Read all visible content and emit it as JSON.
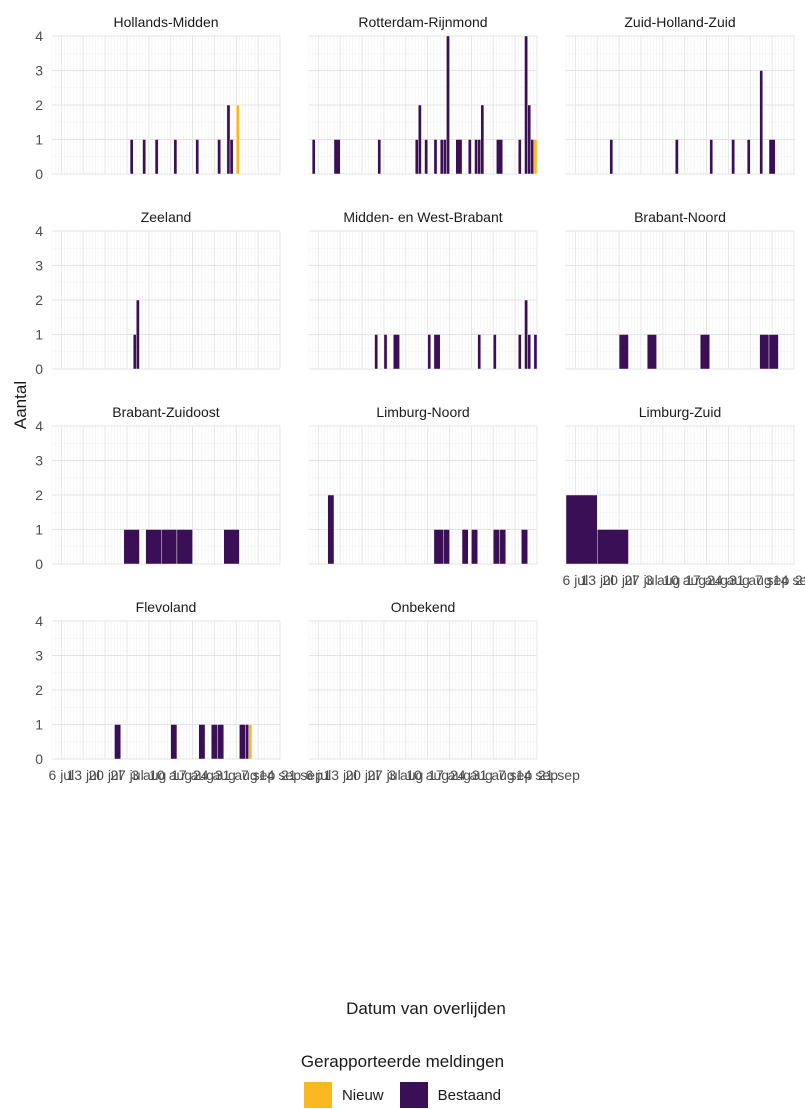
{
  "chart_data": {
    "type": "bar",
    "subtype": "faceted-stacked-histogram",
    "xlabel": "Datum van overlijden",
    "ylabel": "Aantal",
    "ylim": [
      0,
      4
    ],
    "y_ticks": [
      "0",
      "1",
      "2",
      "3",
      "4"
    ],
    "x_range": [
      "2020-07-03",
      "2020-09-13"
    ],
    "x_tick_labels_first": [
      "6 jul",
      "13 jul",
      "20 jul",
      "27 jul",
      "3 aug",
      "10 aug",
      "17 aug",
      "24 aug",
      "31 aug",
      "7 sep",
      "14 sep",
      "21 sep"
    ],
    "x_tick_labels_second": [
      "6 jul",
      "13 jul",
      "20 jul",
      "27 jul",
      "3 aug",
      "10 aug",
      "17 aug",
      "24 aug",
      "31 aug",
      "7 sep",
      "14 sep",
      "21 sep"
    ],
    "x_tick_labels_limburg_zuid": [
      "6 jul",
      "13 jul",
      "20 jul",
      "27 jul",
      "3 aug",
      "10 aug",
      "17 aug",
      "24 aug",
      "31 aug",
      "7 sep",
      "14 sep",
      "21 sep"
    ],
    "legend": {
      "title": "Gerapporteerde meldingen",
      "entries": [
        {
          "name": "Nieuw",
          "color": "#F9B822"
        },
        {
          "name": "Bestaand",
          "color": "#3B0F56"
        }
      ]
    },
    "facets": [
      {
        "name": "Hollands-Midden",
        "bars": [
          {
            "start": "2020-07-28",
            "days": 1,
            "bestaand": 1,
            "nieuw": 0
          },
          {
            "start": "2020-08-01",
            "days": 1,
            "bestaand": 1,
            "nieuw": 0
          },
          {
            "start": "2020-08-05",
            "days": 1,
            "bestaand": 1,
            "nieuw": 0
          },
          {
            "start": "2020-08-11",
            "days": 1,
            "bestaand": 1,
            "nieuw": 0
          },
          {
            "start": "2020-08-18",
            "days": 1,
            "bestaand": 1,
            "nieuw": 0
          },
          {
            "start": "2020-08-25",
            "days": 1,
            "bestaand": 1,
            "nieuw": 0
          },
          {
            "start": "2020-08-28",
            "days": 1,
            "bestaand": 2,
            "nieuw": 0
          },
          {
            "start": "2020-08-29",
            "days": 1,
            "bestaand": 1,
            "nieuw": 0
          },
          {
            "start": "2020-08-31",
            "days": 1,
            "bestaand": 0,
            "nieuw": 2
          }
        ]
      },
      {
        "name": "Rotterdam-Rijnmond",
        "bars": [
          {
            "start": "2020-07-04",
            "days": 1,
            "bestaand": 1,
            "nieuw": 0
          },
          {
            "start": "2020-07-11",
            "days": 2,
            "bestaand": 1,
            "nieuw": 0
          },
          {
            "start": "2020-07-25",
            "days": 1,
            "bestaand": 1,
            "nieuw": 0
          },
          {
            "start": "2020-08-06",
            "days": 1,
            "bestaand": 1,
            "nieuw": 0
          },
          {
            "start": "2020-08-07",
            "days": 1,
            "bestaand": 2,
            "nieuw": 0
          },
          {
            "start": "2020-08-09",
            "days": 1,
            "bestaand": 1,
            "nieuw": 0
          },
          {
            "start": "2020-08-12",
            "days": 1,
            "bestaand": 1,
            "nieuw": 0
          },
          {
            "start": "2020-08-14",
            "days": 1,
            "bestaand": 1,
            "nieuw": 0
          },
          {
            "start": "2020-08-15",
            "days": 1,
            "bestaand": 1,
            "nieuw": 0
          },
          {
            "start": "2020-08-16",
            "days": 1,
            "bestaand": 4,
            "nieuw": 0
          },
          {
            "start": "2020-08-19",
            "days": 2,
            "bestaand": 1,
            "nieuw": 0
          },
          {
            "start": "2020-08-23",
            "days": 1,
            "bestaand": 1,
            "nieuw": 0
          },
          {
            "start": "2020-08-25",
            "days": 1,
            "bestaand": 1,
            "nieuw": 0
          },
          {
            "start": "2020-08-26",
            "days": 1,
            "bestaand": 1,
            "nieuw": 0
          },
          {
            "start": "2020-08-27",
            "days": 1,
            "bestaand": 2,
            "nieuw": 0
          },
          {
            "start": "2020-09-01",
            "days": 2,
            "bestaand": 1,
            "nieuw": 0
          },
          {
            "start": "2020-09-08",
            "days": 1,
            "bestaand": 1,
            "nieuw": 0
          },
          {
            "start": "2020-09-10",
            "days": 1,
            "bestaand": 4,
            "nieuw": 0
          },
          {
            "start": "2020-09-11",
            "days": 1,
            "bestaand": 2,
            "nieuw": 0
          },
          {
            "start": "2020-09-12",
            "days": 1,
            "bestaand": 1,
            "nieuw": 0
          },
          {
            "start": "2020-09-13",
            "days": 1,
            "bestaand": 0,
            "nieuw": 1
          }
        ]
      },
      {
        "name": "Zuid-Holland-Zuid",
        "bars": [
          {
            "start": "2020-07-17",
            "days": 1,
            "bestaand": 1,
            "nieuw": 0
          },
          {
            "start": "2020-08-07",
            "days": 1,
            "bestaand": 1,
            "nieuw": 0
          },
          {
            "start": "2020-08-18",
            "days": 1,
            "bestaand": 1,
            "nieuw": 0
          },
          {
            "start": "2020-08-25",
            "days": 1,
            "bestaand": 1,
            "nieuw": 0
          },
          {
            "start": "2020-08-30",
            "days": 1,
            "bestaand": 1,
            "nieuw": 0
          },
          {
            "start": "2020-09-03",
            "days": 1,
            "bestaand": 3,
            "nieuw": 0
          },
          {
            "start": "2020-09-06",
            "days": 2,
            "bestaand": 1,
            "nieuw": 0
          }
        ]
      },
      {
        "name": "Zeeland",
        "bars": [
          {
            "start": "2020-07-29",
            "days": 1,
            "bestaand": 1,
            "nieuw": 0
          },
          {
            "start": "2020-07-30",
            "days": 1,
            "bestaand": 2,
            "nieuw": 0
          }
        ]
      },
      {
        "name": "Midden- en West-Brabant",
        "bars": [
          {
            "start": "2020-07-24",
            "days": 1,
            "bestaand": 1,
            "nieuw": 0
          },
          {
            "start": "2020-07-27",
            "days": 1,
            "bestaand": 1,
            "nieuw": 0
          },
          {
            "start": "2020-07-30",
            "days": 2,
            "bestaand": 1,
            "nieuw": 0
          },
          {
            "start": "2020-08-10",
            "days": 1,
            "bestaand": 1,
            "nieuw": 0
          },
          {
            "start": "2020-08-12",
            "days": 2,
            "bestaand": 1,
            "nieuw": 0
          },
          {
            "start": "2020-08-26",
            "days": 1,
            "bestaand": 1,
            "nieuw": 0
          },
          {
            "start": "2020-08-31",
            "days": 1,
            "bestaand": 1,
            "nieuw": 0
          },
          {
            "start": "2020-09-08",
            "days": 1,
            "bestaand": 1,
            "nieuw": 0
          },
          {
            "start": "2020-09-10",
            "days": 1,
            "bestaand": 2,
            "nieuw": 0
          },
          {
            "start": "2020-09-11",
            "days": 1,
            "bestaand": 1,
            "nieuw": 0
          },
          {
            "start": "2020-09-13",
            "days": 1,
            "bestaand": 1,
            "nieuw": 0
          }
        ]
      },
      {
        "name": "Brabant-Noord",
        "bars": [
          {
            "start": "2020-07-20",
            "days": 3,
            "bestaand": 1,
            "nieuw": 0
          },
          {
            "start": "2020-07-29",
            "days": 3,
            "bestaand": 1,
            "nieuw": 0
          },
          {
            "start": "2020-08-15",
            "days": 3,
            "bestaand": 1,
            "nieuw": 0
          },
          {
            "start": "2020-09-03",
            "days": 3,
            "bestaand": 1,
            "nieuw": 0
          },
          {
            "start": "2020-09-06",
            "days": 3,
            "bestaand": 1,
            "nieuw": 0
          }
        ]
      },
      {
        "name": "Brabant-Zuidoost",
        "bars": [
          {
            "start": "2020-07-26",
            "days": 5,
            "bestaand": 1,
            "nieuw": 0
          },
          {
            "start": "2020-08-02",
            "days": 5,
            "bestaand": 1,
            "nieuw": 0
          },
          {
            "start": "2020-08-07",
            "days": 5,
            "bestaand": 1,
            "nieuw": 0
          },
          {
            "start": "2020-08-12",
            "days": 5,
            "bestaand": 1,
            "nieuw": 0
          },
          {
            "start": "2020-08-27",
            "days": 5,
            "bestaand": 1,
            "nieuw": 0
          }
        ]
      },
      {
        "name": "Limburg-Noord",
        "bars": [
          {
            "start": "2020-07-09",
            "days": 2,
            "bestaand": 2,
            "nieuw": 0
          },
          {
            "start": "2020-08-12",
            "days": 3,
            "bestaand": 1,
            "nieuw": 0
          },
          {
            "start": "2020-08-15",
            "days": 2,
            "bestaand": 1,
            "nieuw": 0
          },
          {
            "start": "2020-08-21",
            "days": 2,
            "bestaand": 1,
            "nieuw": 0
          },
          {
            "start": "2020-08-24",
            "days": 2,
            "bestaand": 1,
            "nieuw": 0
          },
          {
            "start": "2020-08-31",
            "days": 2,
            "bestaand": 1,
            "nieuw": 0
          },
          {
            "start": "2020-09-02",
            "days": 2,
            "bestaand": 1,
            "nieuw": 0
          },
          {
            "start": "2020-09-09",
            "days": 2,
            "bestaand": 1,
            "nieuw": 0
          }
        ]
      },
      {
        "name": "Limburg-Zuid",
        "bars": [
          {
            "start": "2020-07-03",
            "days": 10,
            "bestaand": 2,
            "nieuw": 0
          },
          {
            "start": "2020-07-13",
            "days": 10,
            "bestaand": 1,
            "nieuw": 0
          }
        ]
      },
      {
        "name": "Flevoland",
        "bars": [
          {
            "start": "2020-07-23",
            "days": 2,
            "bestaand": 1,
            "nieuw": 0
          },
          {
            "start": "2020-08-10",
            "days": 2,
            "bestaand": 1,
            "nieuw": 0
          },
          {
            "start": "2020-08-19",
            "days": 2,
            "bestaand": 1,
            "nieuw": 0
          },
          {
            "start": "2020-08-23",
            "days": 2,
            "bestaand": 1,
            "nieuw": 0
          },
          {
            "start": "2020-08-25",
            "days": 2,
            "bestaand": 1,
            "nieuw": 0
          },
          {
            "start": "2020-09-01",
            "days": 2,
            "bestaand": 1,
            "nieuw": 0
          },
          {
            "start": "2020-09-03",
            "days": 1,
            "bestaand": 1,
            "nieuw": 0
          },
          {
            "start": "2020-09-04",
            "days": 1,
            "bestaand": 0,
            "nieuw": 1
          }
        ]
      },
      {
        "name": "Onbekend",
        "bars": []
      }
    ]
  }
}
